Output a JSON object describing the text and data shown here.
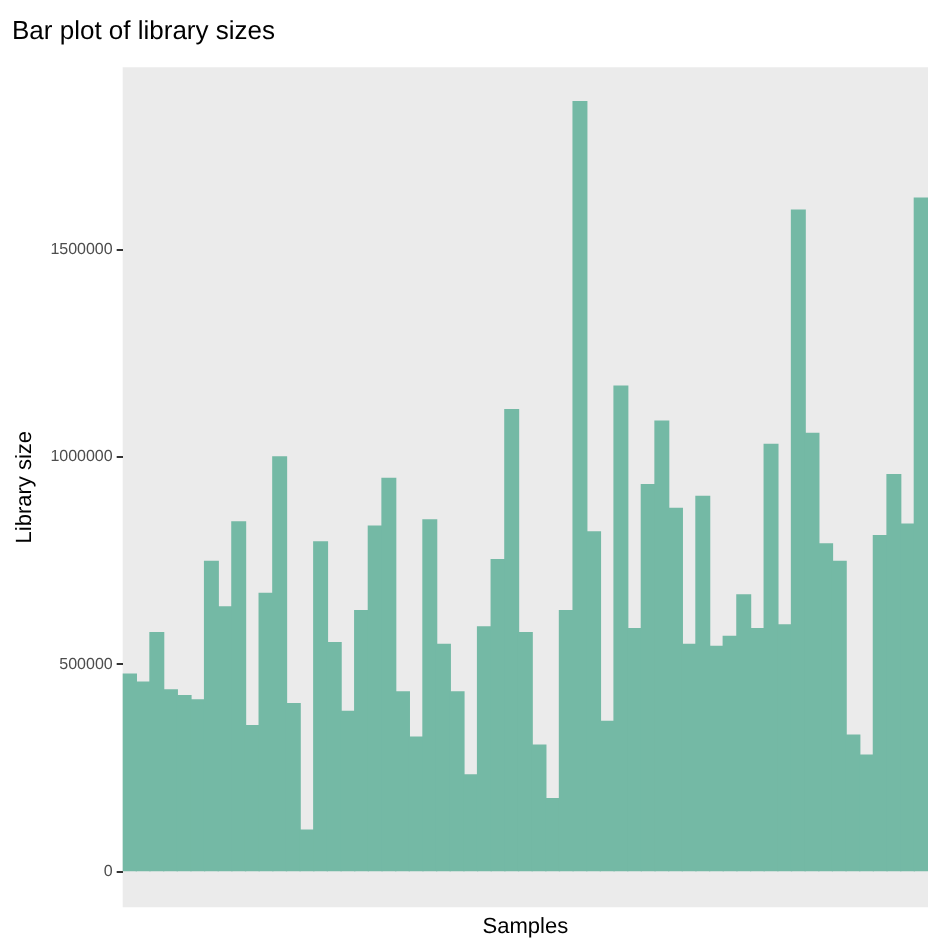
{
  "chart_data": {
    "type": "bar",
    "title": "Bar plot of library sizes",
    "xlabel": "Samples",
    "ylabel": "Library size",
    "categories": [
      null,
      null,
      null,
      null,
      null,
      null,
      null,
      null,
      null,
      null,
      null,
      null,
      null,
      null,
      null,
      null,
      null,
      null,
      null,
      null,
      null,
      null,
      null,
      null,
      null,
      null,
      null,
      null,
      null,
      null,
      null,
      null,
      null,
      null,
      null,
      null,
      null,
      null,
      null,
      null,
      null,
      null,
      null,
      null,
      null,
      null,
      null,
      null,
      null,
      null,
      null,
      null,
      null,
      null,
      null,
      null,
      null,
      null,
      null
    ],
    "values": [
      476000,
      457000,
      576000,
      438000,
      424000,
      414000,
      748000,
      638000,
      843000,
      352000,
      671000,
      1000000,
      405000,
      100000,
      795000,
      552000,
      386000,
      629000,
      833000,
      948000,
      433000,
      324000,
      848000,
      548000,
      433000,
      233000,
      590000,
      752000,
      1114000,
      576000,
      305000,
      176000,
      629000,
      1857000,
      819000,
      362000,
      1171000,
      586000,
      933000,
      1086000,
      876000,
      548000,
      905000,
      543000,
      567000,
      667000,
      586000,
      1030000,
      595000,
      1595000,
      1057000,
      790000,
      748000,
      329000,
      281000,
      810000,
      957000,
      838000,
      1624000
    ],
    "color": "#74b9a5",
    "ylim": [
      -86000,
      1940000
    ],
    "yticks": [
      0,
      500000,
      1000000,
      1500000
    ],
    "grid": false
  }
}
